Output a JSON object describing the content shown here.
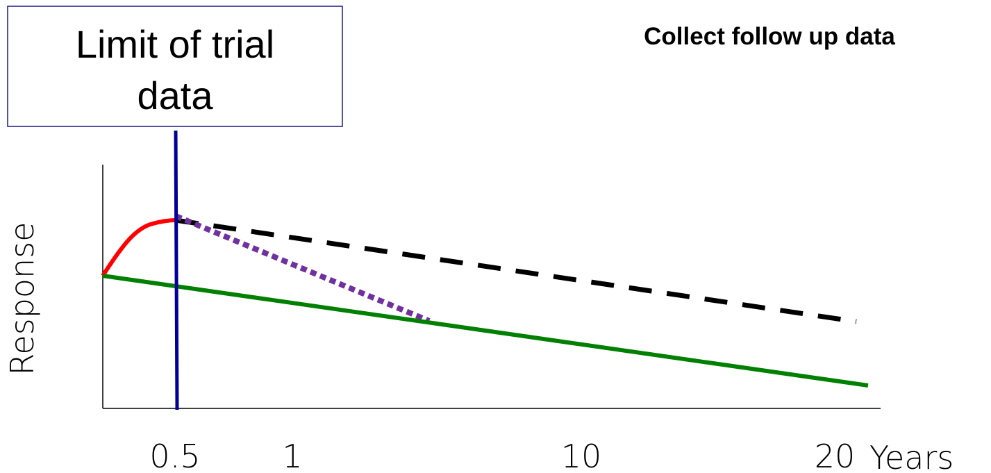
{
  "chart_data": {
    "type": "line",
    "title": "",
    "xlabel": "Years",
    "ylabel": "Response",
    "x_ticks": [
      "0.5",
      "1",
      "10",
      "20"
    ],
    "series": [
      {
        "style": "solid",
        "color": "#ff0000",
        "points": [
          [
            0,
            0.45
          ],
          [
            0.15,
            0.6
          ],
          [
            0.5,
            0.65
          ]
        ]
      },
      {
        "style": "dashed",
        "color": "#000000",
        "points": [
          [
            0.5,
            0.65
          ],
          [
            20,
            0.3
          ]
        ]
      },
      {
        "style": "dotted",
        "color": "#7030a0",
        "points": [
          [
            0.5,
            0.66
          ],
          [
            5,
            0.3
          ]
        ]
      },
      {
        "style": "solid",
        "color": "#008000",
        "points": [
          [
            0,
            0.45
          ],
          [
            20,
            0.07
          ]
        ]
      }
    ],
    "reference_line": {
      "x": 0.5,
      "color": "#000099"
    },
    "callout": {
      "line1": "Limit of trial",
      "line2": "data"
    },
    "annotation": "Collect follow up data",
    "grid": false
  }
}
